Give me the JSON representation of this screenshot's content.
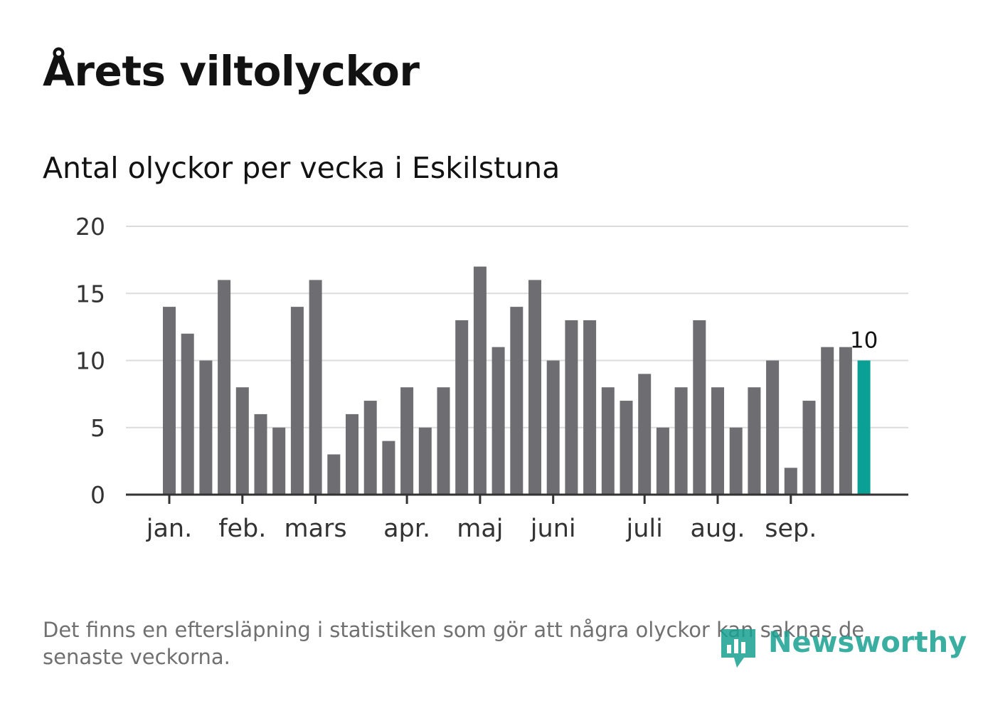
{
  "header": {
    "title": "Årets viltolyckor",
    "subtitle": "Antal olyckor per vecka i Eskilstuna"
  },
  "footer": {
    "note": "Det finns en eftersläpning i statistiken som gör att några olyckor kan saknas de senaste veckorna.",
    "brand": "Newsworthy",
    "brand_icon": "newsworthy-bar-chart-icon"
  },
  "colors": {
    "bar": "#6e6d72",
    "highlight": "#0aa095",
    "grid": "#dcdcdc",
    "axis": "#333333",
    "text": "#121212",
    "note": "#707070"
  },
  "chart_data": {
    "type": "bar",
    "title": "Antal olyckor per vecka i Eskilstuna",
    "xlabel": "",
    "ylabel": "",
    "ylim": [
      0,
      20
    ],
    "yticks": [
      0,
      5,
      10,
      15,
      20
    ],
    "weeks": [
      1,
      2,
      3,
      4,
      5,
      6,
      7,
      8,
      9,
      10,
      11,
      12,
      13,
      14,
      15,
      16,
      17,
      18,
      19,
      20,
      21,
      22,
      23,
      24,
      25,
      26,
      27,
      28,
      29,
      30,
      31,
      32,
      33,
      34,
      35,
      36,
      37,
      38,
      39
    ],
    "values": [
      14,
      12,
      10,
      16,
      8,
      6,
      5,
      14,
      16,
      3,
      6,
      7,
      4,
      8,
      5,
      8,
      13,
      17,
      11,
      14,
      16,
      10,
      13,
      13,
      8,
      7,
      9,
      5,
      8,
      13,
      8,
      5,
      8,
      10,
      2,
      7,
      11,
      11,
      10
    ],
    "highlight_index": 38,
    "highlight_label": "10",
    "month_ticks": [
      {
        "label": "jan.",
        "week": 1
      },
      {
        "label": "feb.",
        "week": 5
      },
      {
        "label": "mars",
        "week": 9
      },
      {
        "label": "apr.",
        "week": 14
      },
      {
        "label": "maj",
        "week": 18
      },
      {
        "label": "juni",
        "week": 22
      },
      {
        "label": "juli",
        "week": 27
      },
      {
        "label": "aug.",
        "week": 31
      },
      {
        "label": "sep.",
        "week": 35
      }
    ],
    "grid": true,
    "legend": "none"
  }
}
